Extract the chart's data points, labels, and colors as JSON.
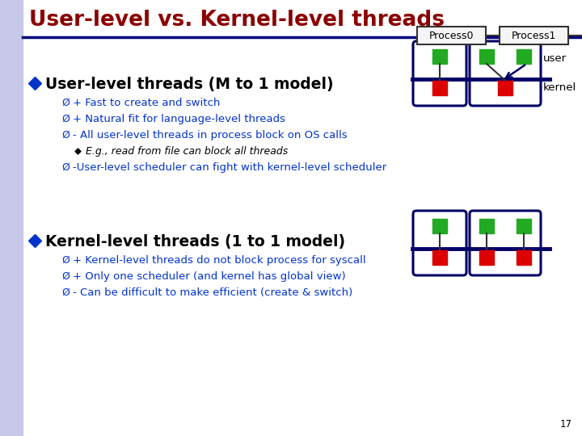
{
  "title": "User-level vs. Kernel-level threads",
  "title_color": "#8B0000",
  "background_color": "#FFFFFF",
  "left_bar_color": "#C8C8E8",
  "header_line_color": "#000080",
  "process0_label": "Process0",
  "process1_label": "Process1",
  "user_label": "user",
  "kernel_label": "kernel",
  "bullet1_title": "User-level threads (M to 1 model)",
  "bullet1_items": [
    "+ Fast to create and switch",
    "+ Natural fit for language-level threads",
    "- All user-level threads in process block on OS calls",
    "E.g., read from file can block all threads",
    "-User-level scheduler can fight with kernel-level scheduler"
  ],
  "bullet2_title": "Kernel-level threads (1 to 1 model)",
  "bullet2_items": [
    "+ Kernel-level threads do not block process for syscall",
    "+ Only one scheduler (and kernel has global view)",
    "- Can be difficult to make efficient (create & switch)"
  ],
  "green_color": "#22AA22",
  "red_color": "#DD0000",
  "box_border_color": "#000066",
  "text_color": "#0033CC",
  "slide_number": "17"
}
